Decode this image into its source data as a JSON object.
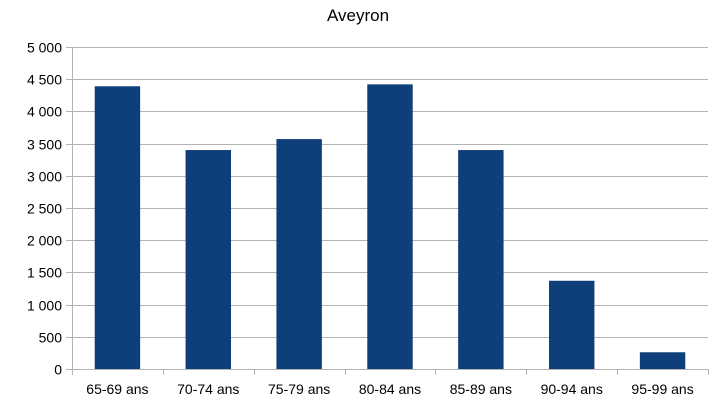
{
  "chart_data": {
    "type": "bar",
    "title": "Aveyron",
    "xlabel": "",
    "ylabel": "",
    "categories": [
      "65-69 ans",
      "70-74 ans",
      "75-79 ans",
      "80-84 ans",
      "85-89 ans",
      "90-94 ans",
      "95-99 ans"
    ],
    "values": [
      4390,
      3400,
      3570,
      4420,
      3400,
      1370,
      260
    ],
    "ylim": [
      0,
      5000
    ],
    "yticks": [
      0,
      500,
      1000,
      1500,
      2000,
      2500,
      3000,
      3500,
      4000,
      4500,
      5000
    ],
    "ytick_labels": [
      "0",
      "500",
      "1 000",
      "1 500",
      "2 000",
      "2 500",
      "3 000",
      "3 500",
      "4 000",
      "4 500",
      "5 000"
    ],
    "grid": true,
    "legend": "none",
    "bar_color": "#0e3f7a",
    "grid_color": "#b3b3b3"
  }
}
